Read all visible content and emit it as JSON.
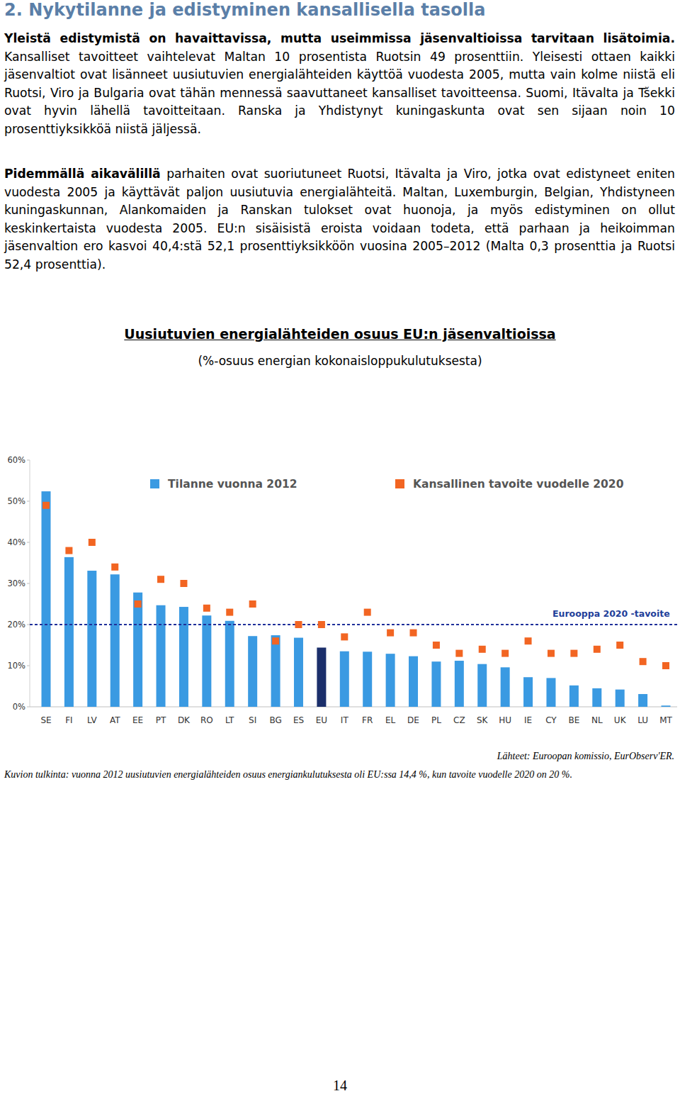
{
  "heading": "2. Nykytilanne ja edistyminen kansallisella tasolla",
  "paragraphs": [
    {
      "lead": "Yleistä edistymistä on havaittavissa, mutta useimmissa jäsenvaltioissa tarvitaan lisätoimia.",
      "body": "Kansalliset tavoitteet vaihtelevat Maltan 10 prosentista Ruotsin 49 prosenttiin. Yleisesti ottaen kaikki jäsenvaltiot ovat lisänneet uusiutuvien energialähteiden käyttöä vuodesta 2005, mutta vain kolme niistä eli Ruotsi, Viro ja Bulgaria ovat tähän mennessä saavuttaneet kansalliset tavoitteensa. Suomi, Itävalta ja Tšekki ovat hyvin lähellä tavoitteitaan. Ranska ja Yhdistynyt kuningaskunta ovat sen sijaan noin 10 prosenttiyksikköä niistä jäljessä."
    },
    {
      "lead": "Pidemmällä aikavälillä",
      "body": "parhaiten ovat suoriutuneet Ruotsi, Itävalta ja Viro, jotka ovat edistyneet eniten vuodesta 2005 ja käyttävät paljon uusiutuvia energialähteitä. Maltan, Luxemburgin, Belgian, Yhdistyneen kuningaskunnan, Alankomaiden ja Ranskan tulokset ovat huonoja, ja myös edistyminen on ollut keskinkertaista vuodesta 2005. EU:n sisäisistä eroista voidaan todeta, että parhaan ja heikoimman jäsenvaltion ero kasvoi 40,4:stä 52,1 prosenttiyksikköön vuosina 2005–2012 (Malta 0,3 prosenttia ja Ruotsi 52,4 prosenttia)."
    }
  ],
  "chart_data": {
    "type": "bar",
    "title": "Uusiutuvien energialähteiden osuus EU:n jäsenvaltioissa",
    "subtitle": "(%-osuus energian kokonaisloppukulutuksesta)",
    "categories": [
      "SE",
      "FI",
      "LV",
      "AT",
      "EE",
      "PT",
      "DK",
      "RO",
      "LT",
      "SI",
      "BG",
      "ES",
      "EU",
      "IT",
      "FR",
      "EL",
      "DE",
      "PL",
      "CZ",
      "SK",
      "HU",
      "IE",
      "CY",
      "BE",
      "NL",
      "UK",
      "LU",
      "MT"
    ],
    "series": [
      {
        "name": "Tilanne vuonna 2012",
        "type": "bar",
        "color": "#3a9ae2",
        "colors": [
          "#3a9ae2",
          "#3a9ae2",
          "#3a9ae2",
          "#3a9ae2",
          "#3a9ae2",
          "#3a9ae2",
          "#3a9ae2",
          "#3a9ae2",
          "#3a9ae2",
          "#3a9ae2",
          "#3a9ae2",
          "#3a9ae2",
          "#1b2f6b",
          "#3a9ae2",
          "#3a9ae2",
          "#3a9ae2",
          "#3a9ae2",
          "#3a9ae2",
          "#3a9ae2",
          "#3a9ae2",
          "#3a9ae2",
          "#3a9ae2",
          "#3a9ae2",
          "#3a9ae2",
          "#3a9ae2",
          "#3a9ae2",
          "#3a9ae2",
          "#3a9ae2"
        ],
        "values": [
          52.4,
          36.4,
          33.1,
          32.2,
          27.8,
          24.7,
          24.3,
          22.2,
          20.9,
          17.2,
          17.4,
          16.8,
          14.4,
          13.5,
          13.4,
          12.9,
          12.3,
          11.0,
          11.2,
          10.4,
          9.6,
          7.2,
          7.0,
          5.2,
          4.5,
          4.2,
          3.1,
          0.3
        ]
      },
      {
        "name": "Kansallinen tavoite vuodelle 2020",
        "type": "scatter",
        "marker": "square",
        "color": "#f26522",
        "values": [
          49,
          38,
          40,
          34,
          25,
          31,
          30,
          24,
          23,
          25,
          16,
          20,
          20,
          17,
          23,
          18,
          18,
          15,
          13,
          14,
          13,
          16,
          13,
          13,
          14,
          15,
          11,
          10
        ]
      }
    ],
    "reference_line": {
      "value": 20,
      "label": "Eurooppa 2020 -tavoite"
    },
    "ylim": [
      0,
      60
    ],
    "yticks": [
      {
        "value": 0,
        "label": "0%"
      },
      {
        "value": 10,
        "label": "10%"
      },
      {
        "value": 20,
        "label": "20%"
      },
      {
        "value": 30,
        "label": "30%"
      },
      {
        "value": 40,
        "label": "40%"
      },
      {
        "value": 50,
        "label": "50%"
      },
      {
        "value": 60,
        "label": "60%"
      }
    ],
    "grid": false,
    "legend": "top"
  },
  "source": "Lähteet: Euroopan komissio, EurObserv'ER.",
  "caption": "Kuvion tulkinta: vuonna 2012 uusiutuvien energialähteiden osuus energiankulutuksesta oli EU:ssa 14,4 %, kun tavoite vuodelle 2020 on 20 %.",
  "page_number": "14"
}
